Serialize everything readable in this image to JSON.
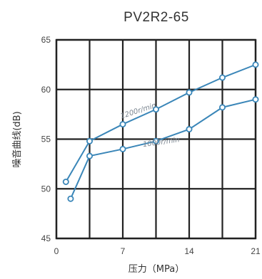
{
  "chart_data": {
    "type": "line",
    "title": "PV2R2-65",
    "xlabel": "压力（MPa）",
    "ylabel": "噪音曲线(dB)",
    "xlim": [
      0,
      21
    ],
    "ylim": [
      45,
      65
    ],
    "x_ticks": [
      "0",
      "7",
      "14",
      "21"
    ],
    "y_ticks": [
      "45",
      "50",
      "55",
      "60",
      "65"
    ],
    "x_grid": [
      0,
      3.5,
      7,
      10.5,
      14,
      17.5,
      21
    ],
    "y_grid": [
      45,
      50,
      55,
      60,
      65
    ],
    "grid": true,
    "line_color": "#3a86b8",
    "series": [
      {
        "name": "1200r/min",
        "x": [
          1.0,
          3.5,
          7.0,
          10.5,
          14.0,
          17.5,
          21.0
        ],
        "y": [
          50.7,
          54.8,
          56.5,
          58.0,
          59.7,
          61.2,
          62.5
        ]
      },
      {
        "name": "1000r/min",
        "x": [
          1.5,
          3.5,
          7.0,
          10.5,
          14.0,
          17.5,
          21.0
        ],
        "y": [
          49.0,
          53.3,
          54.0,
          54.8,
          56.0,
          58.2,
          59.0
        ]
      }
    ]
  }
}
